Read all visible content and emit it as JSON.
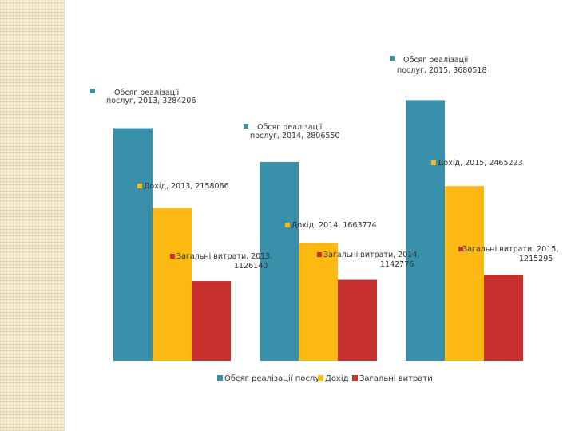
{
  "chart_data": {
    "type": "bar",
    "categories": [
      "2013",
      "2014",
      "2015"
    ],
    "series": [
      {
        "name": "Обсяг реалізації послуг",
        "color": "#3a90ab",
        "values": [
          3284206,
          2806550,
          3680518
        ]
      },
      {
        "name": "Дохід",
        "color": "#fbb911",
        "values": [
          2158066,
          1663774,
          2465223
        ]
      },
      {
        "name": "Загальні витрати",
        "color": "#c62f2d",
        "values": [
          1126140,
          1142776,
          1215295
        ]
      }
    ],
    "data_labels": [
      [
        [
          "Обсяг реалізації",
          "послуг, 2013, 3284206"
        ],
        [
          "Обсяг реалізації",
          "послуг, 2014, 2806550"
        ],
        [
          "Обсяг реалізації",
          "послуг, 2015, 3680518"
        ]
      ],
      [
        [
          "Дохід, 2013, 2158066"
        ],
        [
          "Дохід, 2014, 1663774"
        ],
        [
          "Дохід, 2015, 2465223"
        ]
      ],
      [
        [
          "Загальні витрати, 2013,",
          "1126140"
        ],
        [
          "Загальні витрати, 2014,",
          "1142776"
        ],
        [
          "Загальні витрати, 2015,",
          "1215295"
        ]
      ]
    ],
    "ylim": [
      0,
      4000000
    ],
    "legend_position": "bottom",
    "grid": false,
    "title": "",
    "xlabel": "",
    "ylabel": ""
  }
}
